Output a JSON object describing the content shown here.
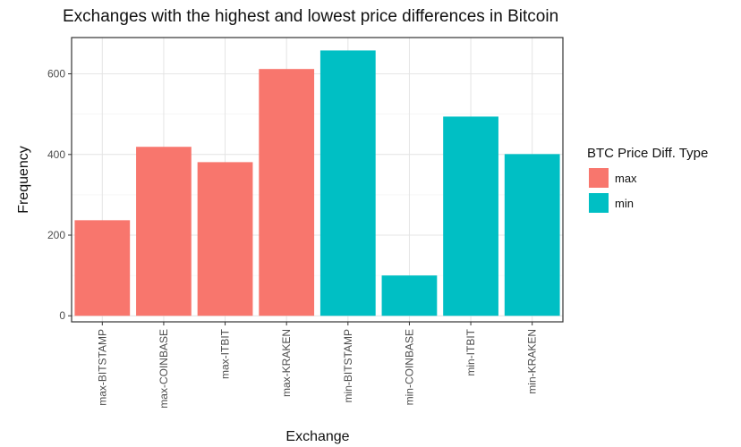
{
  "chart_data": {
    "type": "bar",
    "title": "Exchanges with the highest and lowest price differences in Bitcoin",
    "xlabel": "Exchange",
    "ylabel": "Frequency",
    "categories": [
      "max-BITSTAMP",
      "max-COINBASE",
      "max-ITBIT",
      "max-KRAKEN",
      "min-BITSTAMP",
      "min-COINBASE",
      "min-ITBIT",
      "min-KRAKEN"
    ],
    "values": [
      237,
      419,
      381,
      612,
      658,
      100,
      494,
      401
    ],
    "groups": [
      "max",
      "max",
      "max",
      "max",
      "min",
      "min",
      "min",
      "min"
    ],
    "yticks": [
      0,
      200,
      400,
      600
    ],
    "ylim": [
      -15,
      690
    ],
    "grid": true,
    "legend": {
      "title": "BTC Price Diff. Type",
      "position": "right",
      "entries": [
        {
          "name": "max",
          "color": "#F8766D"
        },
        {
          "name": "min",
          "color": "#00BFC4"
        }
      ]
    }
  }
}
